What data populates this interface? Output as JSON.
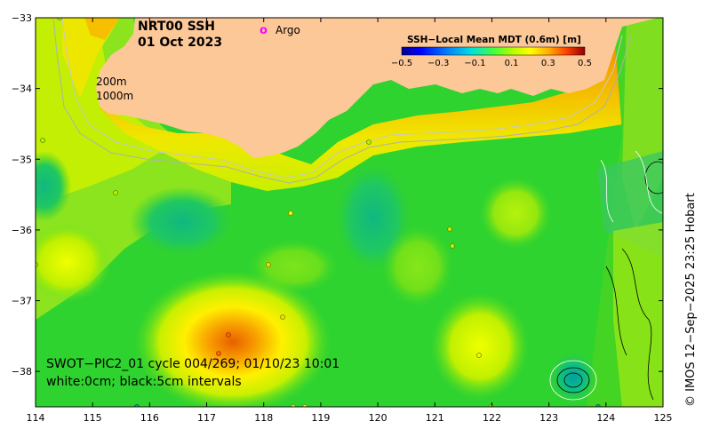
{
  "title": {
    "product": "NRT00 SSH",
    "date": "01 Oct 2023"
  },
  "legend": {
    "argo_symbol": "o",
    "argo_label": "Argo",
    "argo_color": "#ff00ff"
  },
  "isobaths": {
    "shallow": "200m",
    "deep": "1000m"
  },
  "colorbar": {
    "title": "SSH−Local Mean MDT (0.6m) [m]",
    "ticks": [
      "−0.5",
      "−0.3",
      "−0.1",
      "0.1",
      "0.3",
      "0.5"
    ],
    "tick_values": [
      -0.5,
      -0.3,
      -0.1,
      0.1,
      0.3,
      0.5
    ],
    "range": [
      -0.5,
      0.5
    ],
    "colors": [
      "#00008f",
      "#0000ff",
      "#0080ff",
      "#00e0e0",
      "#40ff40",
      "#b0ff00",
      "#ffff00",
      "#ffb000",
      "#ff6000",
      "#e00000",
      "#800000"
    ]
  },
  "axes": {
    "x_ticks": [
      "114",
      "115",
      "116",
      "117",
      "118",
      "119",
      "120",
      "121",
      "122",
      "123",
      "124",
      "125"
    ],
    "y_ticks": [
      "−33",
      "−34",
      "−35",
      "−36",
      "−37",
      "−38"
    ],
    "lon_range": [
      114,
      125
    ],
    "lat_range": [
      -38.5,
      -33
    ]
  },
  "annotation": {
    "line1": "SWOT−PIC2_01 cycle 004/269; 01/10/23 10:01",
    "line2": "white:0cm; black:5cm intervals"
  },
  "credit": "© IMOS 12−Sep−2025 23:25 Hobart",
  "colors": {
    "land": "#fcc898",
    "sea_base": "#2fd32f",
    "coast_band": "#f29a16"
  }
}
